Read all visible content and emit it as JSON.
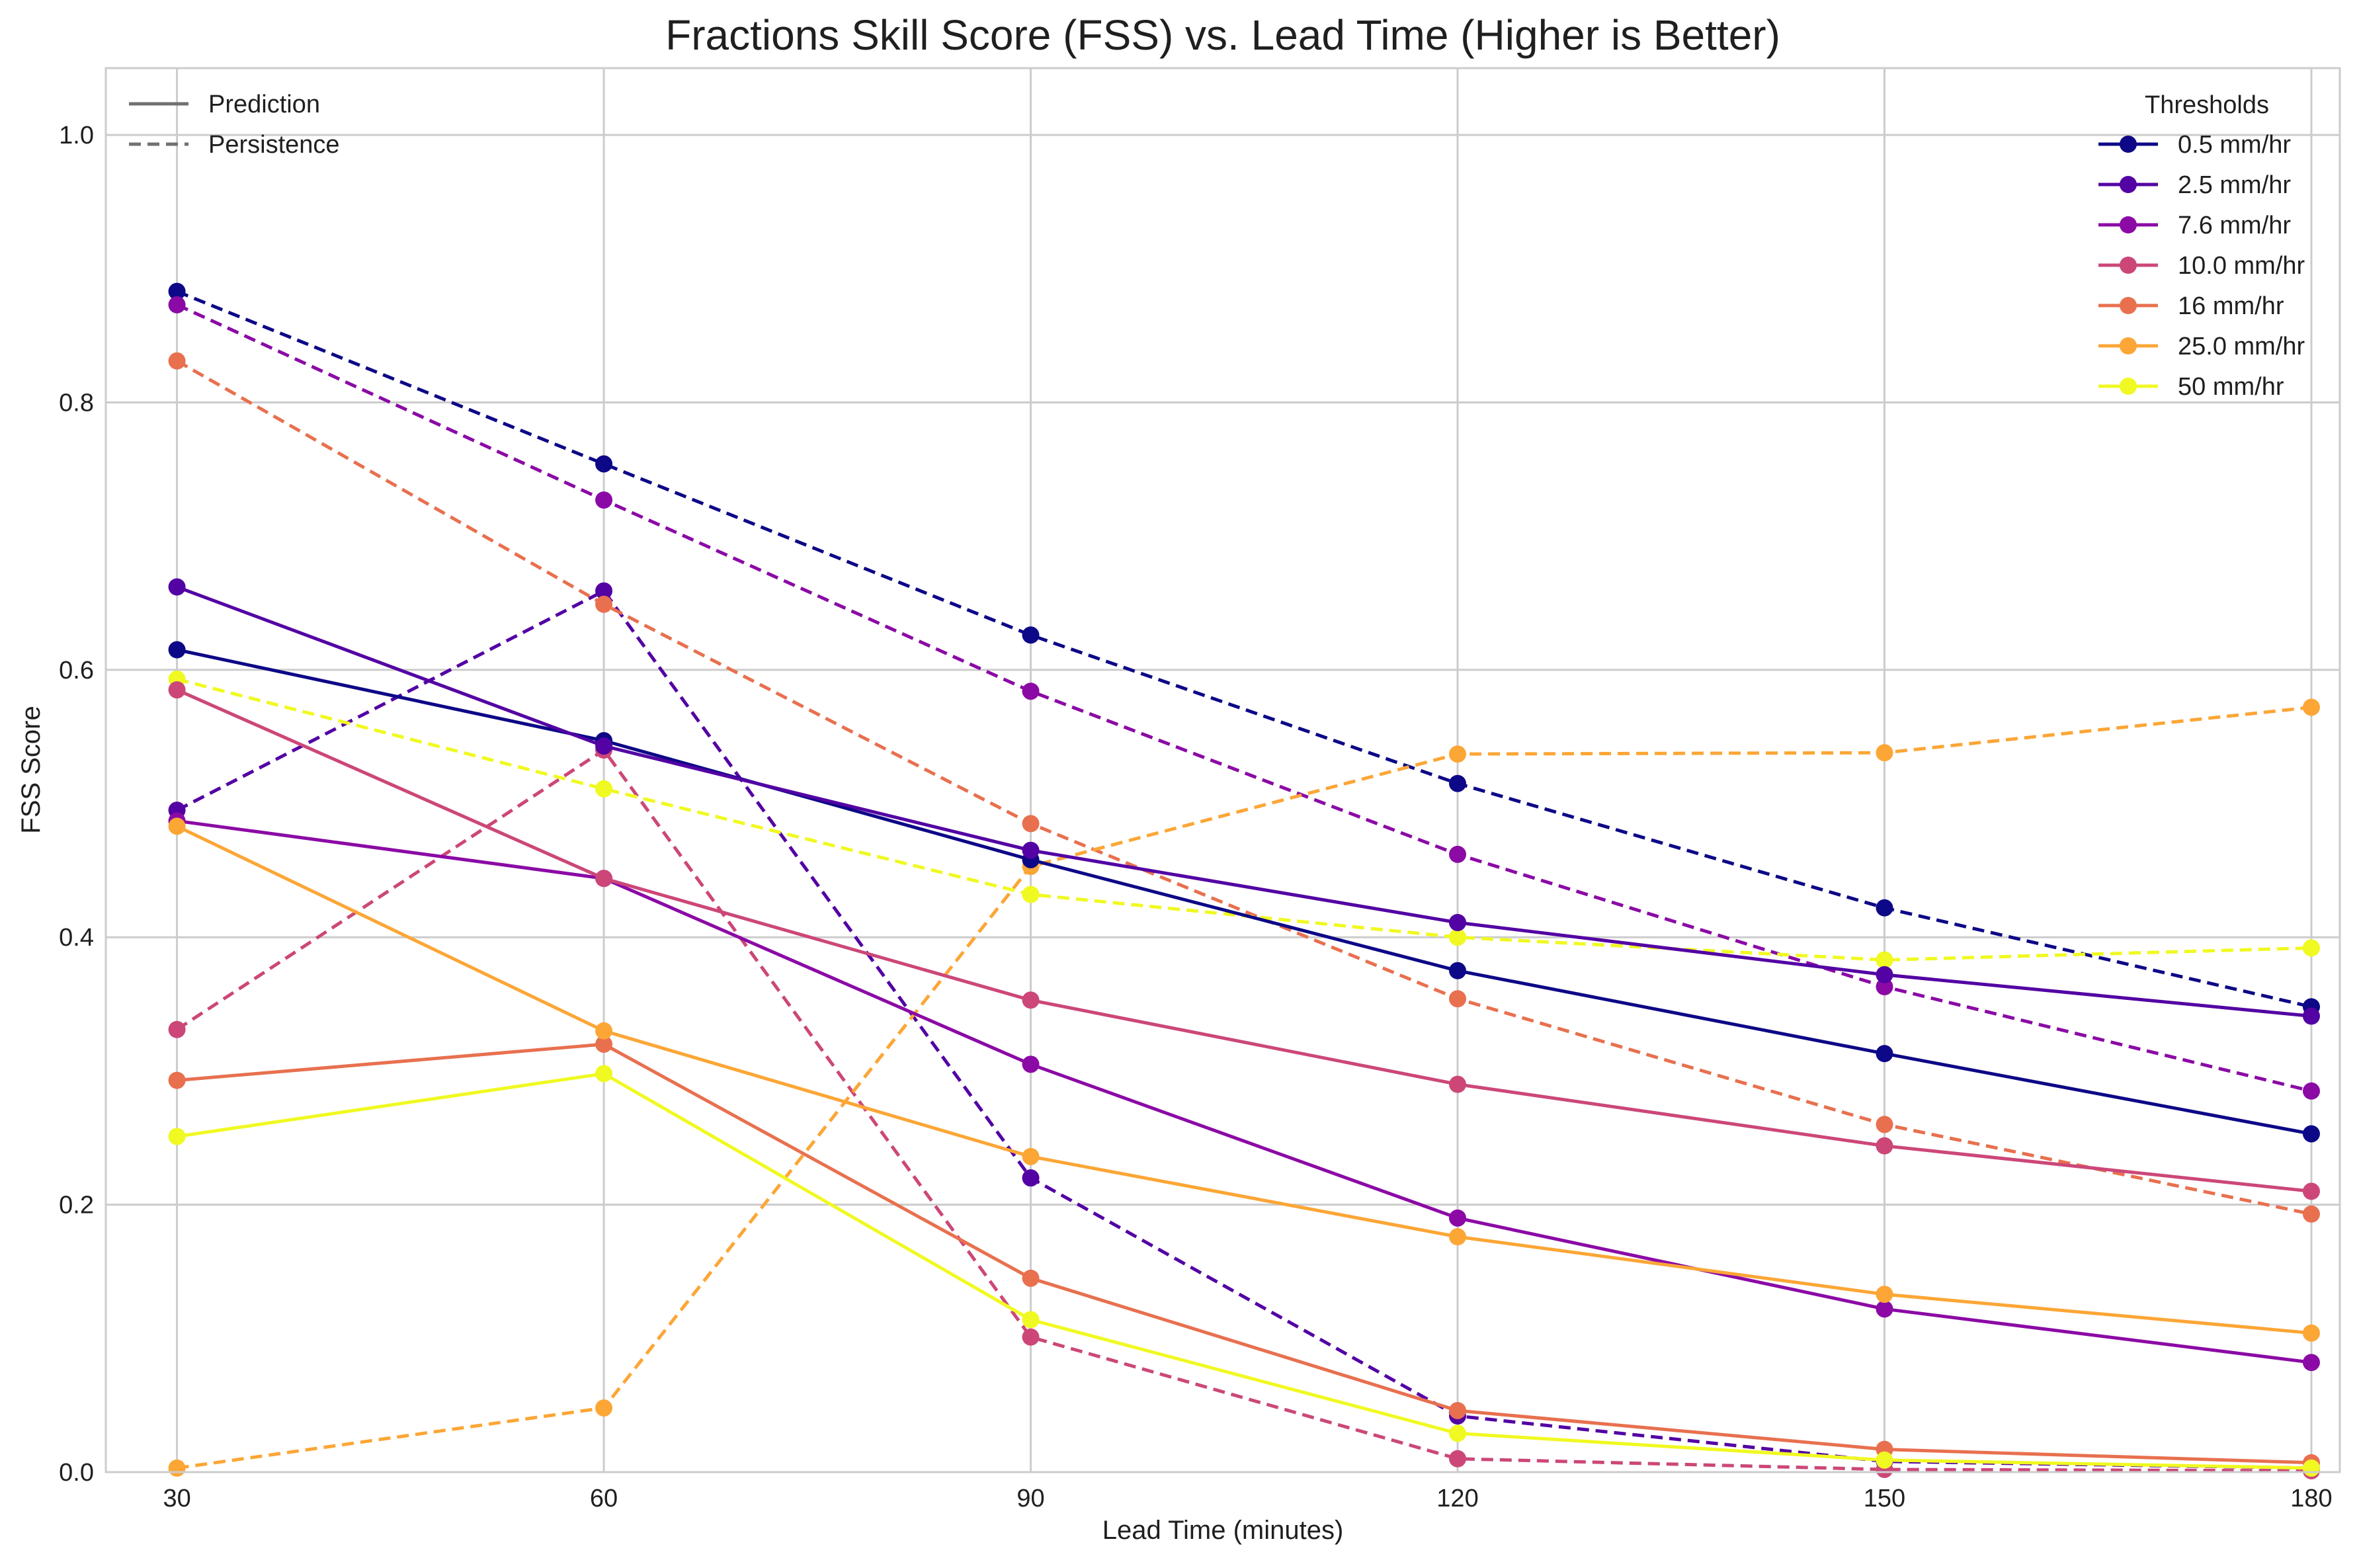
{
  "chart_data": {
    "type": "line",
    "title": "Fractions Skill Score (FSS) vs. Lead Time (Higher is Better)",
    "xlabel": "Lead Time (minutes)",
    "ylabel": "FSS Score",
    "x": [
      30,
      60,
      90,
      120,
      150,
      180
    ],
    "xticks": [
      "30",
      "60",
      "90",
      "120",
      "150",
      "180"
    ],
    "yticks": [
      "0.0",
      "0.2",
      "0.4",
      "0.6",
      "0.8",
      "1.0"
    ],
    "xlim": [
      25,
      182
    ],
    "ylim": [
      0,
      1.05
    ],
    "grid": true,
    "style_legend": {
      "placement": "top-left",
      "entries": [
        {
          "label": "Prediction",
          "style": "solid"
        },
        {
          "label": "Persistence",
          "style": "dashed"
        }
      ]
    },
    "threshold_legend": {
      "placement": "top-right",
      "title": "Thresholds"
    },
    "series": [
      {
        "name": "0.5 mm/hr",
        "color": "#0d0887",
        "prediction": [
          0.615,
          0.547,
          0.458,
          0.375,
          0.313,
          0.253
        ],
        "persistence": [
          0.883,
          0.754,
          0.626,
          0.515,
          0.422,
          0.348
        ]
      },
      {
        "name": "2.5 mm/hr",
        "color": "#5302a3",
        "prediction": [
          0.662,
          0.543,
          0.465,
          0.411,
          0.372,
          0.341
        ],
        "persistence": [
          0.495,
          0.659,
          0.22,
          0.042,
          0.008,
          0.003
        ]
      },
      {
        "name": "7.6 mm/hr",
        "color": "#8b0aa5",
        "prediction": [
          0.487,
          0.444,
          0.305,
          0.19,
          0.122,
          0.082
        ],
        "persistence": [
          0.873,
          0.727,
          0.584,
          0.462,
          0.363,
          0.285
        ]
      },
      {
        "name": "10.0 mm/hr",
        "color": "#cc4778",
        "prediction": [
          0.585,
          0.444,
          0.353,
          0.29,
          0.244,
          0.21
        ],
        "persistence": [
          0.331,
          0.54,
          0.101,
          0.01,
          0.002,
          0.001
        ]
      },
      {
        "name": "16 mm/hr",
        "color": "#e8704f",
        "prediction": [
          0.293,
          0.32,
          0.145,
          0.046,
          0.017,
          0.007
        ],
        "persistence": [
          0.831,
          0.649,
          0.485,
          0.354,
          0.26,
          0.193
        ]
      },
      {
        "name": "25.0 mm/hr",
        "color": "#fca636",
        "prediction": [
          0.483,
          0.33,
          0.236,
          0.176,
          0.133,
          0.104
        ],
        "persistence": [
          0.003,
          0.048,
          0.453,
          0.537,
          0.538,
          0.572
        ]
      },
      {
        "name": "50 mm/hr",
        "color": "#f0f921",
        "prediction": [
          0.251,
          0.298,
          0.114,
          0.029,
          0.009,
          0.003
        ],
        "persistence": [
          0.593,
          0.511,
          0.432,
          0.4,
          0.383,
          0.392
        ]
      }
    ]
  }
}
